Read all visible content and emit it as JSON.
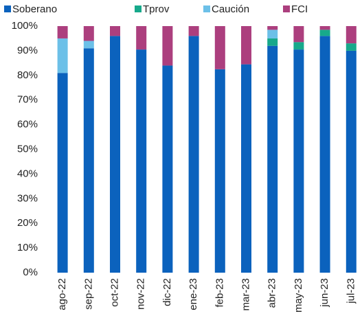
{
  "chart_data": {
    "type": "stacked_bar",
    "categories": [
      "ago-22",
      "sep-22",
      "oct-22",
      "nov-22",
      "dic-22",
      "ene-23",
      "feb-23",
      "mar-23",
      "abr-23",
      "may-23",
      "jun-23",
      "jul-23"
    ],
    "series": [
      {
        "name": "Soberano",
        "color": "#0b62bd",
        "values": [
          81,
          91,
          96,
          90.5,
          84,
          96,
          82.5,
          84.5,
          92,
          90.5,
          96,
          90
        ]
      },
      {
        "name": "Tprov",
        "color": "#17a98b",
        "values": [
          0,
          0,
          0,
          0,
          0,
          0,
          0,
          0,
          3,
          3,
          2.5,
          3
        ]
      },
      {
        "name": "Caución",
        "color": "#6cc0e8",
        "values": [
          14,
          3,
          0,
          0,
          0,
          0,
          0,
          0,
          3.5,
          0,
          0,
          0
        ]
      },
      {
        "name": "FCI",
        "color": "#ac3f7e",
        "values": [
          5,
          6,
          4,
          9.5,
          16,
          4,
          17.5,
          15.5,
          1.5,
          6.5,
          1.5,
          7
        ]
      }
    ],
    "ylim": [
      0,
      100
    ],
    "yticks": [
      {
        "value": 0,
        "label": "0%"
      },
      {
        "value": 10,
        "label": "10%"
      },
      {
        "value": 20,
        "label": "20%"
      },
      {
        "value": 30,
        "label": "30%"
      },
      {
        "value": 40,
        "label": "40%"
      },
      {
        "value": 50,
        "label": "50%"
      },
      {
        "value": 60,
        "label": "60%"
      },
      {
        "value": 70,
        "label": "70%"
      },
      {
        "value": 80,
        "label": "80%"
      },
      {
        "value": 90,
        "label": "90%"
      },
      {
        "value": 100,
        "label": "100%"
      }
    ],
    "legend": "top"
  }
}
